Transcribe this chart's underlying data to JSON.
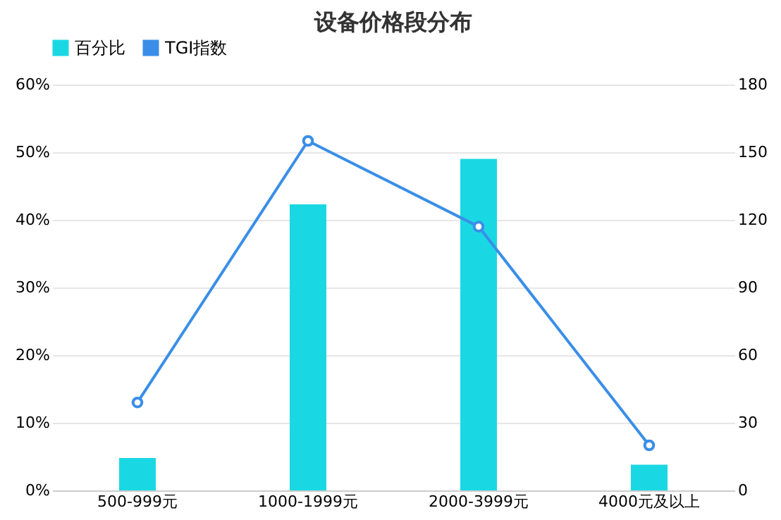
{
  "chart_data": {
    "type": "bar",
    "title": "设备价格段分布",
    "categories": [
      "500-999元",
      "1000-1999元",
      "2000-3999元",
      "4000元及以上"
    ],
    "series": [
      {
        "name": "百分比",
        "color": "#1ad8e3",
        "values": [
          4.8,
          42.3,
          49.0,
          3.8
        ]
      },
      {
        "name": "TGI指数",
        "type": "line",
        "axis": "y2",
        "color": "#3a8ee8",
        "values": [
          39,
          155,
          117,
          20
        ],
        "marker": "circle"
      }
    ],
    "ylim": [
      0,
      60
    ],
    "yticks": [
      {
        "value": 0,
        "label": "0%"
      },
      {
        "value": 10,
        "label": "10%"
      },
      {
        "value": 20,
        "label": "20%"
      },
      {
        "value": 30,
        "label": "30%"
      },
      {
        "value": 40,
        "label": "40%"
      },
      {
        "value": 50,
        "label": "50%"
      },
      {
        "value": 60,
        "label": "60%"
      }
    ],
    "y2lim": [
      0,
      180
    ],
    "y2ticks": [
      0,
      30,
      60,
      90,
      120,
      150,
      180
    ],
    "grid": "y",
    "legend": "top"
  }
}
